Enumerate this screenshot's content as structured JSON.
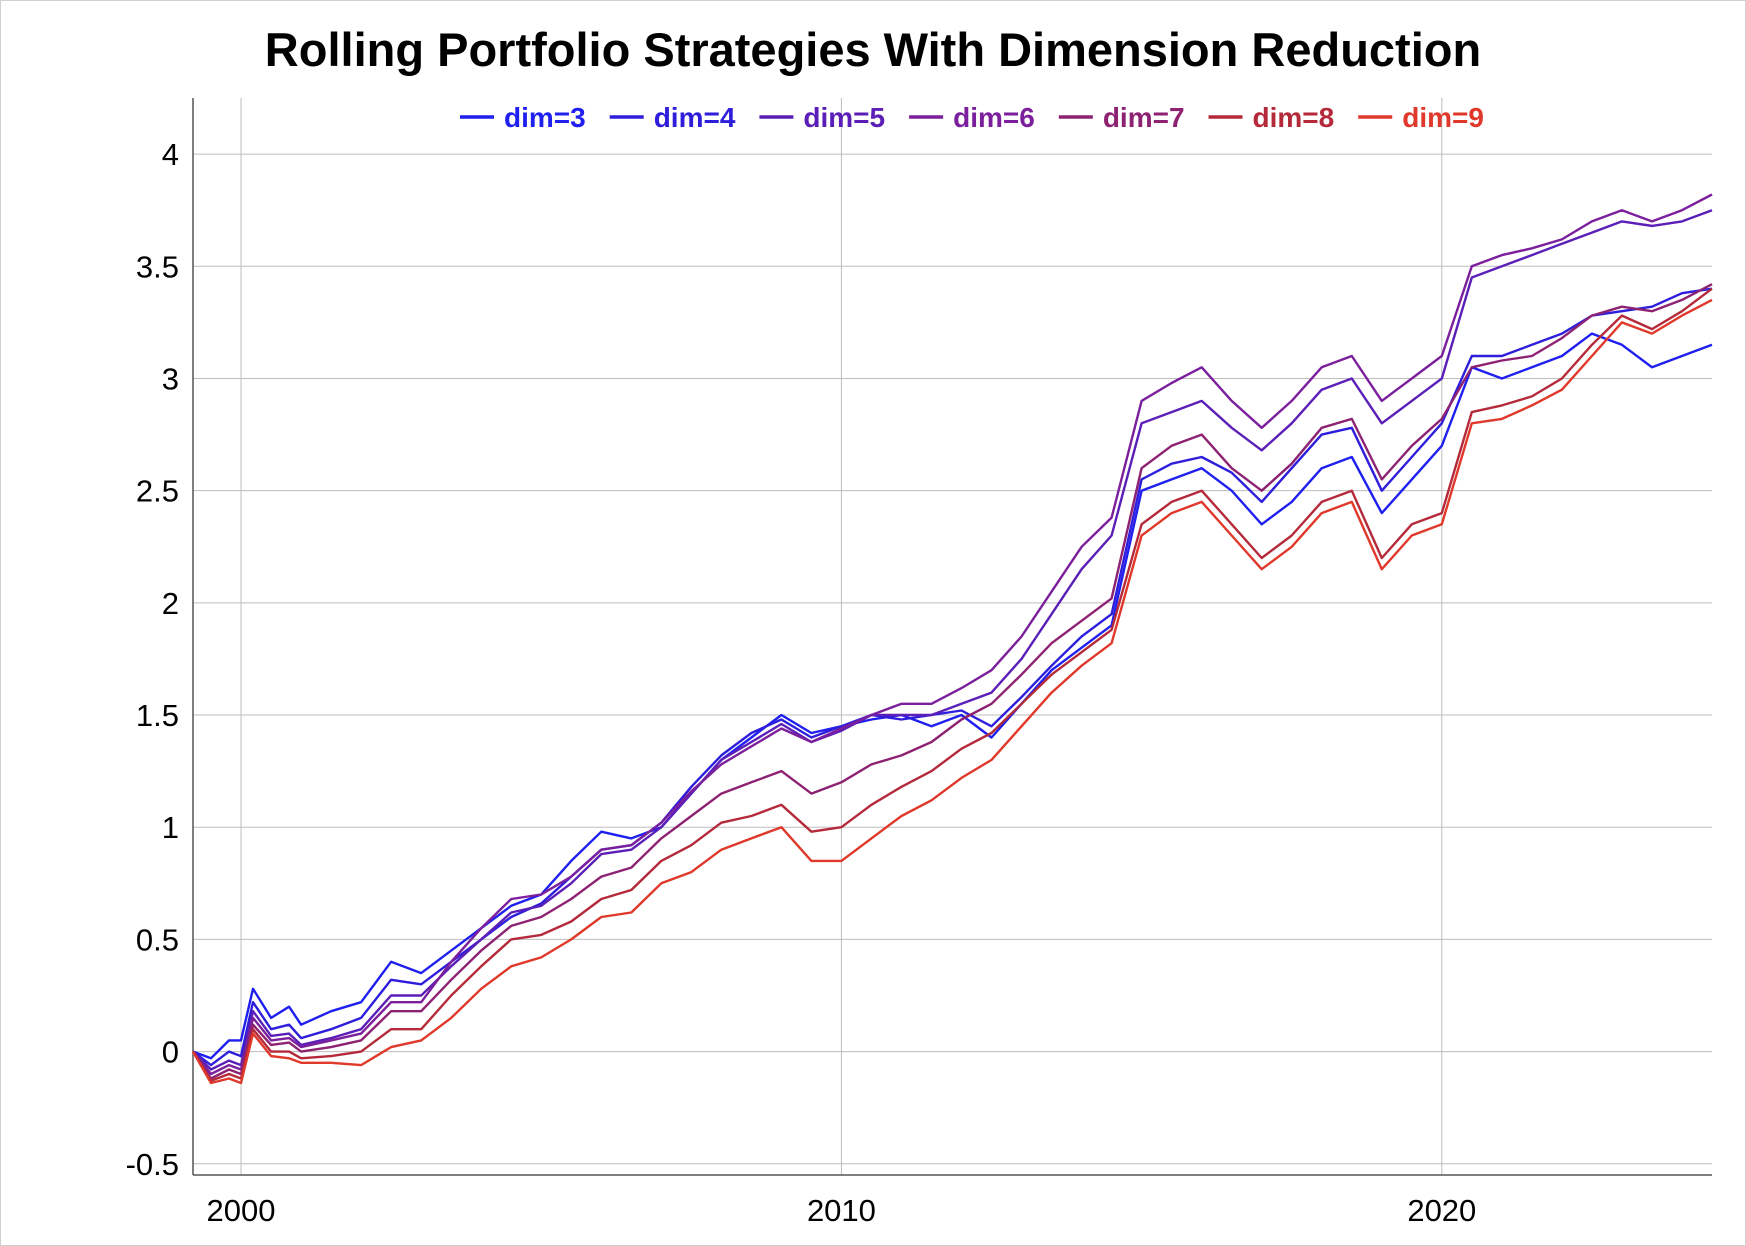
{
  "chart_data": {
    "type": "line",
    "title": "Rolling Portfolio Strategies With Dimension Reduction",
    "xlabel": "",
    "ylabel": "",
    "xlim": [
      1999.2,
      2024.5
    ],
    "ylim": [
      -0.55,
      4.25
    ],
    "x_ticks": [
      2000,
      2010,
      2020
    ],
    "x_tick_labels": [
      "2000",
      "2010",
      "2020"
    ],
    "y_ticks": [
      -0.5,
      0,
      0.5,
      1,
      1.5,
      2,
      2.5,
      3,
      3.5,
      4
    ],
    "y_tick_labels": [
      "-0.5",
      "0",
      "0.5",
      "1",
      "1.5",
      "2",
      "2.5",
      "3",
      "3.5",
      "4"
    ],
    "grid": true,
    "legend_position": "top",
    "x": [
      1999.2,
      1999.5,
      1999.8,
      2000.0,
      2000.2,
      2000.5,
      2000.8,
      2001.0,
      2001.5,
      2002.0,
      2002.5,
      2003.0,
      2003.5,
      2004.0,
      2004.5,
      2005.0,
      2005.5,
      2006.0,
      2006.5,
      2007.0,
      2007.5,
      2008.0,
      2008.5,
      2009.0,
      2009.5,
      2010.0,
      2010.5,
      2011.0,
      2011.5,
      2012.0,
      2012.5,
      2013.0,
      2013.5,
      2014.0,
      2014.5,
      2015.0,
      2015.5,
      2016.0,
      2016.5,
      2017.0,
      2017.5,
      2018.0,
      2018.5,
      2019.0,
      2019.5,
      2020.0,
      2020.5,
      2021.0,
      2021.5,
      2022.0,
      2022.5,
      2023.0,
      2023.5,
      2024.0,
      2024.5
    ],
    "series": [
      {
        "name": "dim=3",
        "color": "#1f1ff0",
        "values": [
          0.0,
          -0.03,
          0.05,
          0.05,
          0.28,
          0.15,
          0.2,
          0.12,
          0.18,
          0.22,
          0.4,
          0.35,
          0.45,
          0.55,
          0.65,
          0.7,
          0.85,
          0.98,
          0.95,
          1.0,
          1.15,
          1.3,
          1.4,
          1.5,
          1.42,
          1.45,
          1.48,
          1.5,
          1.45,
          1.5,
          1.4,
          1.55,
          1.7,
          1.8,
          1.9,
          2.5,
          2.55,
          2.6,
          2.5,
          2.35,
          2.45,
          2.6,
          2.65,
          2.4,
          2.55,
          2.7,
          3.05,
          3.0,
          3.05,
          3.1,
          3.2,
          3.15,
          3.05,
          3.1,
          3.15
        ]
      },
      {
        "name": "dim=4",
        "color": "#2e1edb",
        "values": [
          0.0,
          -0.06,
          0.0,
          -0.02,
          0.22,
          0.1,
          0.12,
          0.06,
          0.1,
          0.15,
          0.32,
          0.3,
          0.4,
          0.5,
          0.6,
          0.66,
          0.78,
          0.9,
          0.92,
          1.02,
          1.18,
          1.32,
          1.42,
          1.48,
          1.4,
          1.45,
          1.5,
          1.48,
          1.5,
          1.52,
          1.45,
          1.58,
          1.72,
          1.85,
          1.95,
          2.55,
          2.62,
          2.65,
          2.58,
          2.45,
          2.6,
          2.75,
          2.78,
          2.5,
          2.65,
          2.8,
          3.1,
          3.1,
          3.15,
          3.2,
          3.28,
          3.3,
          3.32,
          3.38,
          3.4
        ]
      },
      {
        "name": "dim=5",
        "color": "#5b1fb8",
        "values": [
          0.0,
          -0.08,
          -0.04,
          -0.06,
          0.18,
          0.07,
          0.08,
          0.03,
          0.06,
          0.1,
          0.25,
          0.25,
          0.38,
          0.5,
          0.62,
          0.65,
          0.75,
          0.88,
          0.9,
          1.0,
          1.15,
          1.3,
          1.38,
          1.46,
          1.38,
          1.43,
          1.5,
          1.5,
          1.5,
          1.55,
          1.6,
          1.75,
          1.95,
          2.15,
          2.3,
          2.8,
          2.85,
          2.9,
          2.78,
          2.68,
          2.8,
          2.95,
          3.0,
          2.8,
          2.9,
          3.0,
          3.45,
          3.5,
          3.55,
          3.6,
          3.65,
          3.7,
          3.68,
          3.7,
          3.75
        ]
      },
      {
        "name": "dim=6",
        "color": "#7b1f9c",
        "values": [
          0.0,
          -0.1,
          -0.06,
          -0.08,
          0.15,
          0.05,
          0.06,
          0.02,
          0.05,
          0.08,
          0.22,
          0.22,
          0.4,
          0.55,
          0.68,
          0.7,
          0.78,
          0.9,
          0.92,
          1.02,
          1.16,
          1.28,
          1.36,
          1.44,
          1.38,
          1.44,
          1.5,
          1.55,
          1.55,
          1.62,
          1.7,
          1.85,
          2.05,
          2.25,
          2.38,
          2.9,
          2.98,
          3.05,
          2.9,
          2.78,
          2.9,
          3.05,
          3.1,
          2.9,
          3.0,
          3.1,
          3.5,
          3.55,
          3.58,
          3.62,
          3.7,
          3.75,
          3.7,
          3.75,
          3.82
        ]
      },
      {
        "name": "dim=7",
        "color": "#8e2272",
        "values": [
          0.0,
          -0.12,
          -0.08,
          -0.1,
          0.12,
          0.03,
          0.04,
          0.0,
          0.02,
          0.05,
          0.18,
          0.18,
          0.32,
          0.45,
          0.56,
          0.6,
          0.68,
          0.78,
          0.82,
          0.95,
          1.05,
          1.15,
          1.2,
          1.25,
          1.15,
          1.2,
          1.28,
          1.32,
          1.38,
          1.48,
          1.55,
          1.68,
          1.82,
          1.92,
          2.02,
          2.6,
          2.7,
          2.75,
          2.6,
          2.5,
          2.62,
          2.78,
          2.82,
          2.55,
          2.7,
          2.82,
          3.05,
          3.08,
          3.1,
          3.18,
          3.28,
          3.32,
          3.3,
          3.35,
          3.42
        ]
      },
      {
        "name": "dim=8",
        "color": "#b52a3a",
        "values": [
          0.0,
          -0.13,
          -0.1,
          -0.12,
          0.1,
          0.0,
          0.0,
          -0.03,
          -0.02,
          0.0,
          0.1,
          0.1,
          0.25,
          0.38,
          0.5,
          0.52,
          0.58,
          0.68,
          0.72,
          0.85,
          0.92,
          1.02,
          1.05,
          1.1,
          0.98,
          1.0,
          1.1,
          1.18,
          1.25,
          1.35,
          1.42,
          1.55,
          1.68,
          1.78,
          1.88,
          2.35,
          2.45,
          2.5,
          2.35,
          2.2,
          2.3,
          2.45,
          2.5,
          2.2,
          2.35,
          2.4,
          2.85,
          2.88,
          2.92,
          3.0,
          3.15,
          3.28,
          3.22,
          3.3,
          3.4
        ]
      },
      {
        "name": "dim=9",
        "color": "#e0382a",
        "values": [
          0.0,
          -0.14,
          -0.12,
          -0.14,
          0.08,
          -0.02,
          -0.03,
          -0.05,
          -0.05,
          -0.06,
          0.02,
          0.05,
          0.15,
          0.28,
          0.38,
          0.42,
          0.5,
          0.6,
          0.62,
          0.75,
          0.8,
          0.9,
          0.95,
          1.0,
          0.85,
          0.85,
          0.95,
          1.05,
          1.12,
          1.22,
          1.3,
          1.45,
          1.6,
          1.72,
          1.82,
          2.3,
          2.4,
          2.45,
          2.3,
          2.15,
          2.25,
          2.4,
          2.45,
          2.15,
          2.3,
          2.35,
          2.8,
          2.82,
          2.88,
          2.95,
          3.1,
          3.25,
          3.2,
          3.28,
          3.35
        ]
      }
    ]
  }
}
